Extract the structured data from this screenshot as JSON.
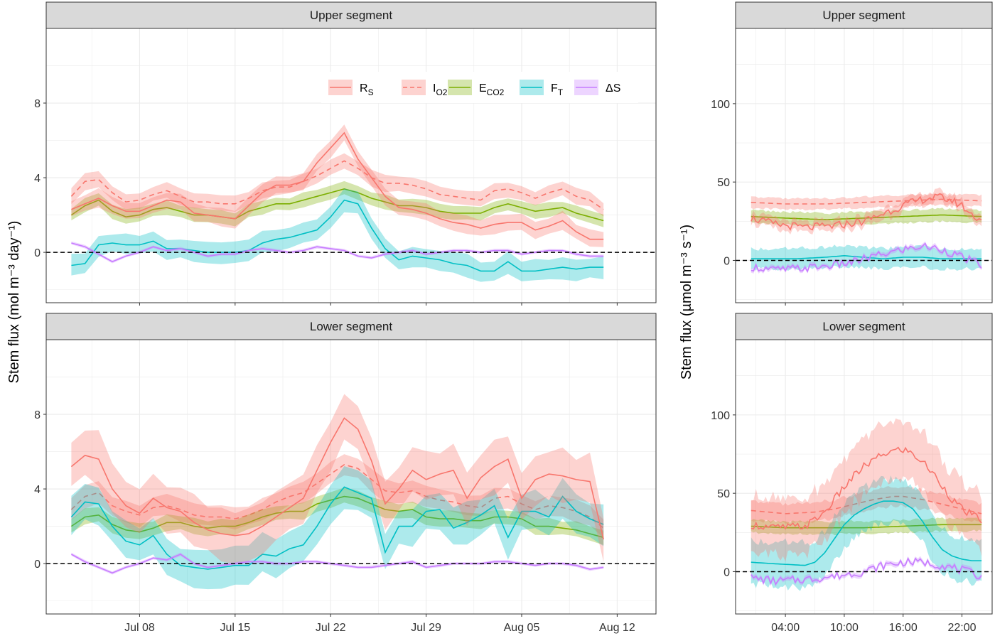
{
  "figure": {
    "ylabel_left": "Stem flux (mol m⁻³ day⁻¹)",
    "ylabel_right": "Stem flux (µmol m⁻³ s⁻¹)"
  },
  "legend": [
    {
      "label": "R",
      "sub": "S",
      "color": "#F8766D",
      "dash": false
    },
    {
      "label": "I",
      "sub": "O2",
      "color": "#F8766D",
      "dash": true
    },
    {
      "label": "E",
      "sub": "CO2",
      "color": "#7CAE00",
      "dash": false
    },
    {
      "label": "F",
      "sub": "T",
      "color": "#00BFC4",
      "dash": false
    },
    {
      "label": "ΔS",
      "sub": "",
      "color": "#C77CFF",
      "dash": false
    }
  ],
  "colors": {
    "RS": "#F8766D",
    "IO2": "#F8766D",
    "ECO2": "#7CAE00",
    "FT": "#00BFC4",
    "dS": "#C77CFF"
  },
  "chart_data": [
    {
      "type": "line",
      "facet": "Upper segment",
      "x_type": "date",
      "x_start": "2021-07-03",
      "x_end": "2021-08-13",
      "xticks": [
        {
          "value": "2021-07-08",
          "label": "Jul 08"
        },
        {
          "value": "2021-07-15",
          "label": "Jul 15"
        },
        {
          "value": "2021-07-22",
          "label": "Jul 22"
        },
        {
          "value": "2021-07-29",
          "label": "Jul 29"
        },
        {
          "value": "2021-08-05",
          "label": "Aug 05"
        },
        {
          "value": "2021-08-12",
          "label": "Aug 12"
        }
      ],
      "ylim": [
        -2.7,
        12.0
      ],
      "yticks": [
        0,
        4,
        8
      ],
      "hline": 0,
      "series": [
        {
          "key": "RS",
          "values": [
            2.3,
            2.6,
            2.9,
            2.5,
            2.2,
            2.2,
            2.5,
            2.8,
            2.7,
            2.1,
            2.0,
            1.9,
            1.8,
            2.5,
            3.2,
            3.6,
            3.6,
            3.8,
            4.8,
            5.6,
            6.4,
            5.0,
            4.0,
            3.0,
            2.4,
            2.3,
            2.1,
            1.8,
            1.6,
            1.5,
            1.3,
            1.5,
            1.6,
            1.6,
            1.2,
            1.4,
            1.7,
            1.1,
            0.7,
            0.7
          ],
          "band": 0.45
        },
        {
          "key": "IO2",
          "values": [
            3.0,
            3.8,
            3.9,
            3.2,
            2.7,
            2.8,
            3.1,
            3.3,
            3.0,
            2.7,
            2.7,
            2.6,
            2.6,
            2.9,
            3.3,
            3.5,
            3.5,
            3.8,
            4.1,
            4.5,
            4.9,
            4.5,
            4.0,
            3.7,
            3.7,
            3.6,
            3.4,
            3.1,
            3.0,
            2.9,
            2.8,
            3.3,
            3.4,
            3.2,
            2.9,
            3.2,
            3.4,
            3.0,
            2.8,
            2.3
          ],
          "band": 0.4
        },
        {
          "key": "ECO2",
          "values": [
            2.0,
            2.5,
            2.8,
            2.2,
            1.9,
            2.0,
            2.3,
            2.4,
            2.2,
            2.0,
            2.0,
            1.9,
            1.8,
            2.2,
            2.4,
            2.6,
            2.6,
            2.8,
            3.0,
            3.2,
            3.4,
            3.2,
            2.9,
            2.7,
            2.5,
            2.5,
            2.4,
            2.2,
            2.1,
            2.1,
            2.1,
            2.4,
            2.6,
            2.4,
            2.2,
            2.3,
            2.4,
            2.1,
            1.9,
            1.7
          ],
          "band": 0.35
        },
        {
          "key": "FT",
          "values": [
            -0.7,
            -0.6,
            0.4,
            0.5,
            0.4,
            0.4,
            0.6,
            0.2,
            0.2,
            0.1,
            0.0,
            0.0,
            0.0,
            0.1,
            0.5,
            0.7,
            0.8,
            1.0,
            1.2,
            1.9,
            2.8,
            2.6,
            1.3,
            0.2,
            -0.4,
            -0.2,
            -0.3,
            -0.4,
            -0.6,
            -0.7,
            -1.0,
            -1.0,
            -0.5,
            -1.0,
            -1.0,
            -0.9,
            -0.8,
            -0.9,
            -0.8,
            -0.8
          ],
          "band": 0.55
        },
        {
          "key": "dS",
          "values": [
            0.5,
            0.3,
            -0.1,
            -0.5,
            -0.2,
            0.0,
            0.3,
            0.1,
            0.2,
            0.0,
            -0.2,
            -0.1,
            -0.1,
            0.1,
            0.2,
            0.1,
            0.0,
            0.1,
            0.3,
            0.2,
            0.1,
            -0.2,
            -0.3,
            -0.1,
            0.0,
            0.1,
            -0.1,
            0.0,
            0.1,
            0.1,
            0.0,
            0.1,
            0.1,
            -0.1,
            0.0,
            0.1,
            0.1,
            -0.1,
            -0.2,
            -0.2
          ],
          "band": 0.08
        }
      ]
    },
    {
      "type": "line",
      "facet": "Lower segment",
      "x_type": "date",
      "x_start": "2021-07-03",
      "x_end": "2021-08-13",
      "xticks": [
        {
          "value": "2021-07-08",
          "label": "Jul 08"
        },
        {
          "value": "2021-07-15",
          "label": "Jul 15"
        },
        {
          "value": "2021-07-22",
          "label": "Jul 22"
        },
        {
          "value": "2021-07-29",
          "label": "Jul 29"
        },
        {
          "value": "2021-08-05",
          "label": "Aug 05"
        },
        {
          "value": "2021-08-12",
          "label": "Aug 12"
        }
      ],
      "ylim": [
        -2.7,
        12.0
      ],
      "yticks": [
        0,
        4,
        8
      ],
      "hline": 0,
      "series": [
        {
          "key": "RS",
          "values": [
            5.2,
            5.8,
            5.6,
            4.0,
            3.1,
            2.7,
            3.5,
            3.0,
            2.8,
            2.2,
            1.8,
            1.6,
            1.5,
            1.6,
            2.0,
            2.5,
            3.0,
            3.5,
            5.0,
            6.5,
            7.8,
            7.2,
            5.5,
            3.2,
            4.0,
            5.0,
            4.5,
            4.8,
            5.0,
            3.5,
            4.6,
            5.2,
            5.6,
            3.5,
            4.5,
            4.8,
            4.7,
            4.5,
            4.4,
            1.3
          ],
          "band": 1.3
        },
        {
          "key": "IO2",
          "values": [
            2.9,
            3.6,
            3.8,
            3.1,
            2.8,
            2.6,
            3.0,
            3.1,
            2.9,
            2.6,
            2.5,
            2.5,
            2.4,
            2.6,
            2.9,
            3.3,
            3.6,
            3.8,
            4.3,
            4.8,
            5.3,
            5.1,
            4.5,
            3.9,
            3.8,
            3.9,
            3.6,
            3.4,
            3.3,
            3.1,
            3.0,
            3.5,
            3.6,
            3.2,
            2.9,
            3.1,
            3.0,
            2.8,
            2.5,
            1.9
          ],
          "band": 0.55
        },
        {
          "key": "ECO2",
          "values": [
            2.0,
            2.5,
            2.6,
            2.1,
            1.8,
            1.7,
            1.9,
            2.2,
            2.2,
            2.0,
            1.9,
            2.0,
            2.0,
            2.2,
            2.5,
            2.7,
            2.8,
            2.8,
            3.2,
            3.4,
            3.6,
            3.5,
            3.2,
            2.9,
            2.8,
            2.9,
            2.5,
            2.4,
            2.4,
            2.3,
            2.3,
            2.5,
            2.5,
            2.4,
            2.0,
            2.0,
            1.9,
            1.8,
            1.6,
            1.4
          ],
          "band": 0.4
        },
        {
          "key": "FT",
          "values": [
            2.5,
            3.3,
            3.2,
            2.0,
            1.2,
            1.0,
            1.5,
            0.5,
            -0.1,
            -0.2,
            -0.3,
            -0.2,
            -0.1,
            -0.1,
            0.5,
            0.4,
            0.8,
            1.0,
            2.0,
            3.2,
            4.1,
            3.8,
            3.5,
            0.6,
            2.0,
            2.0,
            2.8,
            2.9,
            1.9,
            2.2,
            2.6,
            3.1,
            1.4,
            2.8,
            2.8,
            2.5,
            3.6,
            2.8,
            2.4,
            2.1
          ],
          "band": 1.0
        },
        {
          "key": "dS",
          "values": [
            0.5,
            0.1,
            -0.2,
            -0.5,
            -0.2,
            0.0,
            0.3,
            0.2,
            0.5,
            0.0,
            -0.2,
            -0.1,
            0.0,
            0.1,
            0.1,
            0.0,
            0.0,
            0.1,
            0.1,
            0.0,
            -0.1,
            -0.2,
            -0.2,
            -0.1,
            0.0,
            0.1,
            -0.2,
            -0.1,
            0.0,
            0.0,
            0.0,
            0.1,
            0.1,
            0.0,
            -0.1,
            0.0,
            0.0,
            -0.1,
            -0.3,
            -0.2
          ],
          "band": 0.08
        }
      ]
    },
    {
      "type": "line",
      "facet": "Upper segment",
      "x_type": "hour",
      "x_start": 0.0,
      "x_end": 24.0,
      "xticks": [
        {
          "value": 4,
          "label": "04:00"
        },
        {
          "value": 10,
          "label": "10:00"
        },
        {
          "value": 16,
          "label": "16:00"
        },
        {
          "value": 22,
          "label": "22:00"
        }
      ],
      "ylim": [
        -27,
        148
      ],
      "yticks": [
        0,
        50,
        100
      ],
      "hline": 0,
      "series": [
        {
          "key": "RS",
          "noisy": true,
          "hours": [
            0.5,
            3,
            6,
            9,
            12,
            14,
            16,
            17,
            18,
            19,
            20,
            21,
            22,
            23,
            24
          ],
          "values": [
            27,
            23,
            21,
            22,
            25,
            30,
            35,
            37,
            39,
            40,
            40,
            38,
            35,
            29,
            26
          ],
          "band": 3.5
        },
        {
          "key": "IO2",
          "hours": [
            0.5,
            4,
            8,
            12,
            16,
            20,
            24
          ],
          "values": [
            37,
            36,
            36,
            37,
            38,
            39,
            38
          ],
          "band": 3.5
        },
        {
          "key": "ECO2",
          "hours": [
            0.5,
            4,
            8,
            12,
            16,
            20,
            24
          ],
          "values": [
            28,
            27,
            26,
            27,
            28,
            29,
            28
          ],
          "band": 4.0
        },
        {
          "key": "FT",
          "hours": [
            0.5,
            5,
            8,
            10,
            12,
            14,
            16,
            18,
            20,
            22,
            24
          ],
          "values": [
            1,
            1,
            2,
            3,
            2,
            1,
            2,
            2,
            1,
            1,
            1
          ],
          "band": 6.5
        },
        {
          "key": "dS",
          "noisy": true,
          "hours": [
            0.5,
            3,
            6,
            9,
            11,
            12,
            14,
            16,
            18,
            20,
            22,
            24
          ],
          "values": [
            -4,
            -6,
            -5,
            -3,
            -1,
            1,
            4,
            7,
            9,
            7,
            2,
            -3
          ],
          "band": 1.5
        }
      ]
    },
    {
      "type": "line",
      "facet": "Lower segment",
      "x_type": "hour",
      "x_start": 0.0,
      "x_end": 24.0,
      "xticks": [
        {
          "value": 4,
          "label": "04:00"
        },
        {
          "value": 10,
          "label": "10:00"
        },
        {
          "value": 16,
          "label": "16:00"
        },
        {
          "value": 22,
          "label": "22:00"
        }
      ],
      "ylim": [
        -27,
        148
      ],
      "yticks": [
        0,
        50,
        100
      ],
      "hline": 0,
      "series": [
        {
          "key": "RS",
          "noisy": true,
          "hours": [
            0.5,
            3,
            6,
            7,
            8,
            9,
            10,
            11,
            12,
            13,
            14,
            15,
            16,
            17,
            18,
            19,
            20,
            21,
            22,
            23,
            24
          ],
          "values": [
            30,
            28,
            29,
            33,
            38,
            46,
            54,
            61,
            67,
            71,
            75,
            77,
            78,
            75,
            70,
            63,
            55,
            46,
            40,
            36,
            33
          ],
          "band": 18
        },
        {
          "key": "IO2",
          "hours": [
            0.5,
            4,
            7,
            9,
            11,
            13,
            15,
            16,
            18,
            20,
            22,
            24
          ],
          "values": [
            39,
            37,
            38,
            40,
            43,
            46,
            48,
            48,
            46,
            43,
            40,
            37
          ],
          "band": 6
        },
        {
          "key": "ECO2",
          "hours": [
            0.5,
            4,
            8,
            12,
            16,
            20,
            24
          ],
          "values": [
            29,
            28,
            28,
            28,
            29,
            30,
            30
          ],
          "band": 4
        },
        {
          "key": "FT",
          "hours": [
            0.5,
            3,
            6,
            7,
            8,
            9,
            10,
            11,
            12,
            13,
            14,
            15,
            16,
            17,
            18,
            19,
            20,
            21,
            22,
            23,
            24
          ],
          "values": [
            6,
            5,
            4,
            6,
            12,
            21,
            30,
            36,
            40,
            43,
            45,
            45,
            44,
            40,
            32,
            22,
            14,
            10,
            8,
            7,
            7
          ],
          "band": 14
        },
        {
          "key": "dS",
          "noisy": true,
          "hours": [
            0.5,
            3,
            6,
            9,
            12,
            14,
            16,
            18,
            20,
            22,
            24
          ],
          "values": [
            -4,
            -6,
            -5,
            -3,
            0,
            4,
            6,
            6,
            4,
            1,
            -3
          ],
          "band": 1.5
        }
      ]
    }
  ],
  "facets": [
    {
      "label": "Upper segment"
    },
    {
      "label": "Lower segment"
    },
    {
      "label": "Upper segment"
    },
    {
      "label": "Lower segment"
    }
  ]
}
